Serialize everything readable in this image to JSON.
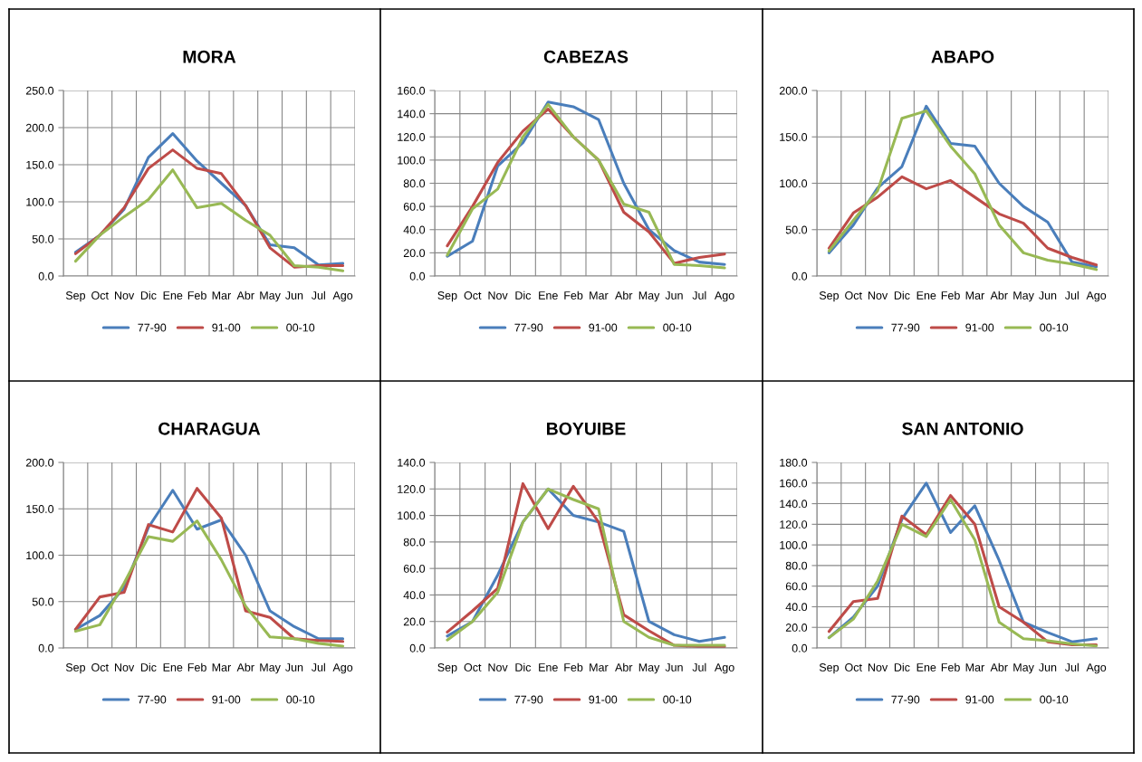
{
  "chart_data": [
    {
      "type": "line",
      "title": "MORA",
      "categories": [
        "Sep",
        "Oct",
        "Nov",
        "Dic",
        "Ene",
        "Feb",
        "Mar",
        "Abr",
        "May",
        "Jun",
        "Jul",
        "Ago"
      ],
      "ylim": [
        0,
        250
      ],
      "yticks": [
        {
          "value": 0,
          "label": "0.0"
        },
        {
          "value": 50,
          "label": "50.0"
        },
        {
          "value": 100,
          "label": "100.0"
        },
        {
          "value": 150,
          "label": "150.0"
        },
        {
          "value": 200,
          "label": "200.0"
        },
        {
          "value": 250,
          "label": "250.0"
        }
      ],
      "grid": true,
      "legend": "bottom",
      "marker": "none",
      "line_style": "solid",
      "series": [
        {
          "name": "77-90",
          "color": "#4a7ebb",
          "values": [
            32,
            55,
            90,
            160,
            192,
            155,
            125,
            95,
            42,
            38,
            15,
            17
          ]
        },
        {
          "name": "91-00",
          "color": "#be4b48",
          "values": [
            30,
            55,
            92,
            145,
            170,
            145,
            138,
            95,
            38,
            12,
            14,
            14
          ]
        },
        {
          "name": "00-10",
          "color": "#98b954",
          "values": [
            20,
            55,
            80,
            103,
            143,
            92,
            98,
            75,
            55,
            14,
            12,
            7
          ]
        }
      ]
    },
    {
      "type": "line",
      "title": "CABEZAS",
      "categories": [
        "Sep",
        "Oct",
        "Nov",
        "Dic",
        "Ene",
        "Feb",
        "Mar",
        "Abr",
        "May",
        "Jun",
        "Jul",
        "Ago"
      ],
      "ylim": [
        0,
        160
      ],
      "yticks": [
        {
          "value": 0,
          "label": "0.0"
        },
        {
          "value": 20,
          "label": "20.0"
        },
        {
          "value": 40,
          "label": "40.0"
        },
        {
          "value": 60,
          "label": "60.0"
        },
        {
          "value": 80,
          "label": "80.0"
        },
        {
          "value": 100,
          "label": "100.0"
        },
        {
          "value": 120,
          "label": "120.0"
        },
        {
          "value": 140,
          "label": "140.0"
        },
        {
          "value": 160,
          "label": "160.0"
        }
      ],
      "grid": true,
      "legend": "bottom",
      "marker": "none",
      "line_style": "solid",
      "series": [
        {
          "name": "77-90",
          "color": "#4a7ebb",
          "values": [
            17,
            30,
            95,
            115,
            150,
            146,
            135,
            80,
            40,
            22,
            12,
            10
          ]
        },
        {
          "name": "91-00",
          "color": "#be4b48",
          "values": [
            26,
            60,
            98,
            125,
            144,
            120,
            100,
            55,
            38,
            11,
            16,
            19
          ]
        },
        {
          "name": "00-10",
          "color": "#98b954",
          "values": [
            18,
            58,
            75,
            120,
            148,
            120,
            100,
            62,
            55,
            10,
            9,
            7
          ]
        }
      ]
    },
    {
      "type": "line",
      "title": "ABAPO",
      "categories": [
        "Sep",
        "Oct",
        "Nov",
        "Dic",
        "Ene",
        "Feb",
        "Mar",
        "Abr",
        "May",
        "Jun",
        "Jul",
        "Ago"
      ],
      "ylim": [
        0,
        200
      ],
      "yticks": [
        {
          "value": 0,
          "label": "0.0"
        },
        {
          "value": 50,
          "label": "50.0"
        },
        {
          "value": 100,
          "label": "100.0"
        },
        {
          "value": 150,
          "label": "150.0"
        },
        {
          "value": 200,
          "label": "200.0"
        }
      ],
      "grid": true,
      "legend": "bottom",
      "marker": "none",
      "line_style": "solid",
      "series": [
        {
          "name": "77-90",
          "color": "#4a7ebb",
          "values": [
            25,
            55,
            95,
            118,
            183,
            143,
            140,
            100,
            75,
            58,
            15,
            10
          ]
        },
        {
          "name": "91-00",
          "color": "#be4b48",
          "values": [
            30,
            68,
            85,
            107,
            94,
            103,
            85,
            67,
            57,
            30,
            20,
            12
          ]
        },
        {
          "name": "00-10",
          "color": "#98b954",
          "values": [
            27,
            60,
            92,
            170,
            178,
            140,
            110,
            55,
            25,
            17,
            13,
            7
          ]
        }
      ]
    },
    {
      "type": "line",
      "title": "CHARAGUA",
      "categories": [
        "Sep",
        "Oct",
        "Nov",
        "Dic",
        "Ene",
        "Feb",
        "Mar",
        "Abr",
        "May",
        "Jun",
        "Jul",
        "Ago"
      ],
      "ylim": [
        0,
        200
      ],
      "yticks": [
        {
          "value": 0,
          "label": "0.0"
        },
        {
          "value": 50,
          "label": "50.0"
        },
        {
          "value": 100,
          "label": "100.0"
        },
        {
          "value": 150,
          "label": "150.0"
        },
        {
          "value": 200,
          "label": "200.0"
        }
      ],
      "grid": true,
      "legend": "bottom",
      "marker": "none",
      "line_style": "solid",
      "series": [
        {
          "name": "77-90",
          "color": "#4a7ebb",
          "values": [
            20,
            35,
            65,
            130,
            170,
            128,
            138,
            100,
            40,
            23,
            10,
            10
          ]
        },
        {
          "name": "91-00",
          "color": "#be4b48",
          "values": [
            20,
            55,
            60,
            133,
            125,
            172,
            140,
            40,
            33,
            10,
            8,
            7
          ]
        },
        {
          "name": "00-10",
          "color": "#98b954",
          "values": [
            18,
            25,
            70,
            120,
            115,
            137,
            95,
            45,
            12,
            10,
            5,
            2
          ]
        }
      ]
    },
    {
      "type": "line",
      "title": "BOYUIBE",
      "categories": [
        "Sep",
        "Oct",
        "Nov",
        "Dic",
        "Ene",
        "Feb",
        "Mar",
        "Abr",
        "May",
        "Jun",
        "Jul",
        "Ago"
      ],
      "ylim": [
        0,
        140
      ],
      "yticks": [
        {
          "value": 0,
          "label": "0.0"
        },
        {
          "value": 20,
          "label": "20.0"
        },
        {
          "value": 40,
          "label": "40.0"
        },
        {
          "value": 60,
          "label": "60.0"
        },
        {
          "value": 80,
          "label": "80.0"
        },
        {
          "value": 100,
          "label": "100.0"
        },
        {
          "value": 120,
          "label": "120.0"
        },
        {
          "value": 140,
          "label": "140.0"
        }
      ],
      "grid": true,
      "legend": "bottom",
      "marker": "none",
      "line_style": "solid",
      "series": [
        {
          "name": "77-90",
          "color": "#4a7ebb",
          "values": [
            9,
            20,
            55,
            95,
            120,
            100,
            95,
            88,
            20,
            10,
            5,
            8
          ]
        },
        {
          "name": "91-00",
          "color": "#be4b48",
          "values": [
            12,
            28,
            45,
            124,
            90,
            122,
            95,
            25,
            13,
            2,
            1,
            1
          ]
        },
        {
          "name": "00-10",
          "color": "#98b954",
          "values": [
            6,
            20,
            42,
            95,
            120,
            112,
            105,
            20,
            8,
            2,
            2,
            2
          ]
        }
      ]
    },
    {
      "type": "line",
      "title": "SAN ANTONIO",
      "categories": [
        "Sep",
        "Oct",
        "Nov",
        "Dic",
        "Ene",
        "Feb",
        "Mar",
        "Abr",
        "May",
        "Jun",
        "Jul",
        "Ago"
      ],
      "ylim": [
        0,
        180
      ],
      "yticks": [
        {
          "value": 0,
          "label": "0.0"
        },
        {
          "value": 20,
          "label": "20.0"
        },
        {
          "value": 40,
          "label": "40.0"
        },
        {
          "value": 60,
          "label": "60.0"
        },
        {
          "value": 80,
          "label": "80.0"
        },
        {
          "value": 100,
          "label": "100.0"
        },
        {
          "value": 120,
          "label": "120.0"
        },
        {
          "value": 140,
          "label": "140.0"
        },
        {
          "value": 160,
          "label": "160.0"
        },
        {
          "value": 180,
          "label": "180.0"
        }
      ],
      "grid": true,
      "legend": "bottom",
      "marker": "none",
      "line_style": "solid",
      "series": [
        {
          "name": "77-90",
          "color": "#4a7ebb",
          "values": [
            10,
            30,
            60,
            125,
            160,
            112,
            138,
            85,
            25,
            15,
            6,
            9
          ]
        },
        {
          "name": "91-00",
          "color": "#be4b48",
          "values": [
            16,
            45,
            48,
            128,
            110,
            148,
            120,
            40,
            25,
            6,
            3,
            3
          ]
        },
        {
          "name": "00-10",
          "color": "#98b954",
          "values": [
            10,
            28,
            65,
            120,
            108,
            144,
            105,
            25,
            9,
            7,
            4,
            2
          ]
        }
      ]
    }
  ]
}
